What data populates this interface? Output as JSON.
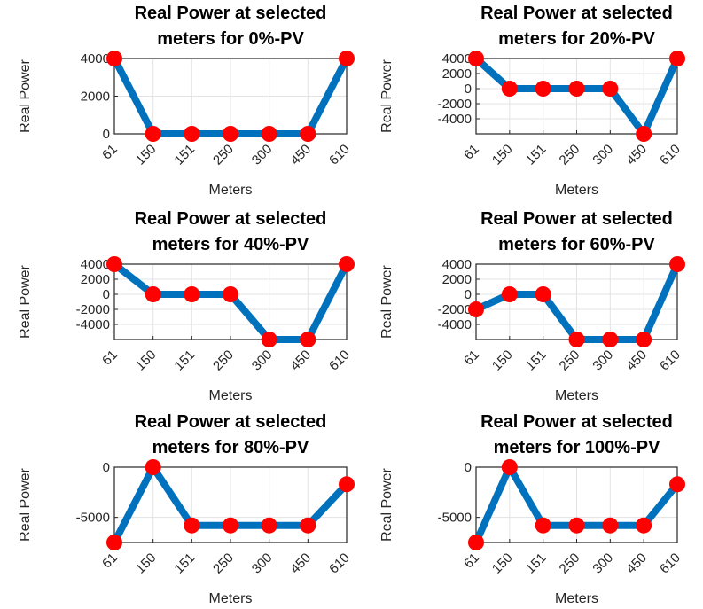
{
  "figure": {
    "background": "#ffffff",
    "line_color": "#0072bd",
    "marker_color": "#ff0000",
    "axes_color": "#262626",
    "grid_color": "#e3e3e3"
  },
  "chart_data": [
    {
      "type": "line",
      "title": [
        "Real Power at selected",
        "meters for 0%-PV"
      ],
      "xlabel": "Meters",
      "ylabel": "Real Power",
      "categories": [
        "61",
        "150",
        "151",
        "250",
        "300",
        "450",
        "610"
      ],
      "values": [
        4000,
        0,
        0,
        0,
        0,
        0,
        4000
      ],
      "ylim": [
        0,
        4000
      ],
      "yticks": [
        0,
        2000,
        4000
      ],
      "grid": true,
      "markers": true
    },
    {
      "type": "line",
      "title": [
        "Real Power at selected",
        "meters for 20%-PV"
      ],
      "xlabel": "Meters",
      "ylabel": "Real Power",
      "categories": [
        "61",
        "150",
        "151",
        "250",
        "300",
        "450",
        "610"
      ],
      "values": [
        4000,
        0,
        0,
        0,
        0,
        -6000,
        4000
      ],
      "ylim": [
        -6000,
        4000
      ],
      "yticks": [
        -4000,
        -2000,
        0,
        2000,
        4000
      ],
      "grid": true,
      "markers": true
    },
    {
      "type": "line",
      "title": [
        "Real Power at selected",
        "meters for 40%-PV"
      ],
      "xlabel": "Meters",
      "ylabel": "Real Power",
      "categories": [
        "61",
        "150",
        "151",
        "250",
        "300",
        "450",
        "610"
      ],
      "values": [
        4000,
        0,
        0,
        0,
        -6000,
        -6000,
        4000
      ],
      "ylim": [
        -6000,
        4000
      ],
      "yticks": [
        -4000,
        -2000,
        0,
        2000,
        4000
      ],
      "grid": true,
      "markers": true
    },
    {
      "type": "line",
      "title": [
        "Real Power at selected",
        "meters for 60%-PV"
      ],
      "xlabel": "Meters",
      "ylabel": "Real Power",
      "categories": [
        "61",
        "150",
        "151",
        "250",
        "300",
        "450",
        "610"
      ],
      "values": [
        -2000,
        0,
        0,
        -6000,
        -6000,
        -6000,
        4000
      ],
      "ylim": [
        -6000,
        4000
      ],
      "yticks": [
        -4000,
        -2000,
        0,
        2000,
        4000
      ],
      "grid": true,
      "markers": true
    },
    {
      "type": "line",
      "title": [
        "Real Power at selected",
        "meters for 80%-PV"
      ],
      "xlabel": "Meters",
      "ylabel": "Real Power",
      "categories": [
        "61",
        "150",
        "151",
        "250",
        "300",
        "450",
        "610"
      ],
      "values": [
        -7500,
        0,
        -5800,
        -5800,
        -5800,
        -5800,
        -1700
      ],
      "ylim": [
        -7500,
        0
      ],
      "yticks": [
        -5000,
        0
      ],
      "grid": true,
      "markers": true
    },
    {
      "type": "line",
      "title": [
        "Real Power at selected",
        "meters for 100%-PV"
      ],
      "xlabel": "Meters",
      "ylabel": "Real Power",
      "categories": [
        "61",
        "150",
        "151",
        "250",
        "300",
        "450",
        "610"
      ],
      "values": [
        -7500,
        0,
        -5800,
        -5800,
        -5800,
        -5800,
        -1700
      ],
      "ylim": [
        -7500,
        0
      ],
      "yticks": [
        -5000,
        0
      ],
      "grid": true,
      "markers": true
    }
  ]
}
